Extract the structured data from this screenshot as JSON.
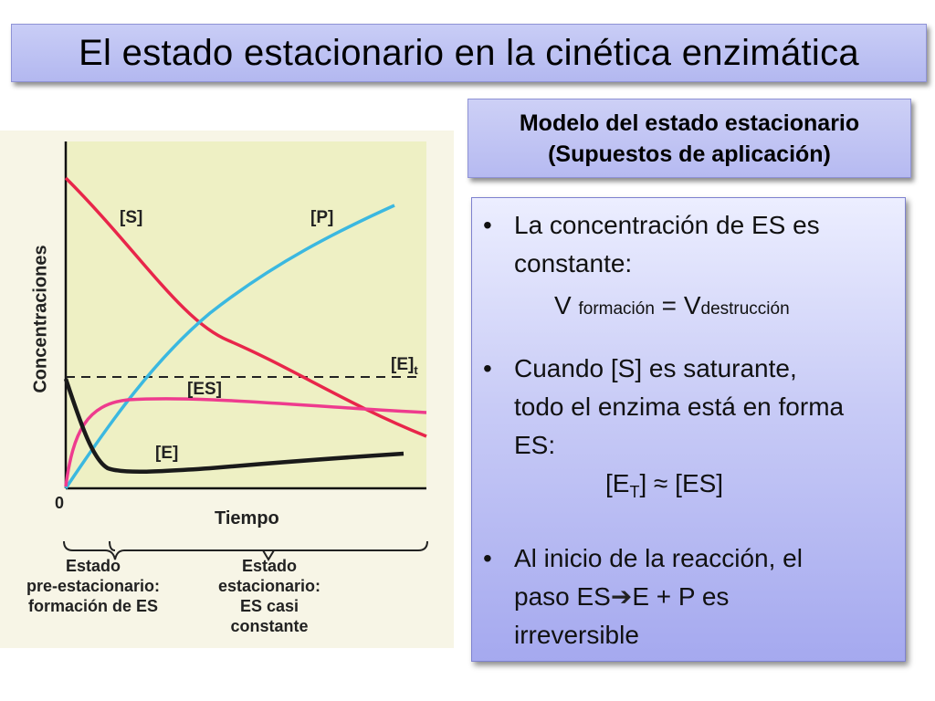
{
  "title": "El estado estacionario en la cinética enzimática",
  "model": {
    "line1": "Modelo del estado estacionario",
    "line2": "(Supuestos de aplicación)"
  },
  "bullets": {
    "b1_line1": "La concentración de ES es",
    "b1_line2": "constante:",
    "b1_v1": "V",
    "b1_sub1": "formación",
    "b1_eq": "=",
    "b1_v2": "V",
    "b1_sub2": "destrucción",
    "b2_line1": "Cuando [S] es saturante,",
    "b2_line2": "todo el enzima está en forma",
    "b2_line3": "ES:",
    "b2_et_open": "[E",
    "b2_et_sub": "T",
    "b2_et_close": "] ≈ [ES]",
    "b3_line1": "Al inicio de la reacción, el",
    "b3_line2_a": "paso ES",
    "b3_arrow": "➔",
    "b3_line2_b": "E + P es",
    "b3_line3": "irreversible",
    "bullet_char": "•"
  },
  "figure": {
    "ylabel": "Concentraciones",
    "xlabel": "Tiempo",
    "origin": "0",
    "label_s": "[S]",
    "label_p": "[P]",
    "label_es": "[ES]",
    "label_e": "[E]",
    "label_et": "[E]",
    "label_et_sub": "t",
    "region1_line1": "Estado",
    "region1_line2": "pre-estacionario:",
    "region1_line3": "formación de ES",
    "region2_line1": "Estado",
    "region2_line2": "estacionario:",
    "region2_line3": "ES casi",
    "region2_line4": "constante",
    "colors": {
      "S": "#e8264a",
      "P": "#3bb8e0",
      "ES": "#ee3b8e",
      "E": "#1a1a1a",
      "background": "#f7f5e6"
    }
  }
}
